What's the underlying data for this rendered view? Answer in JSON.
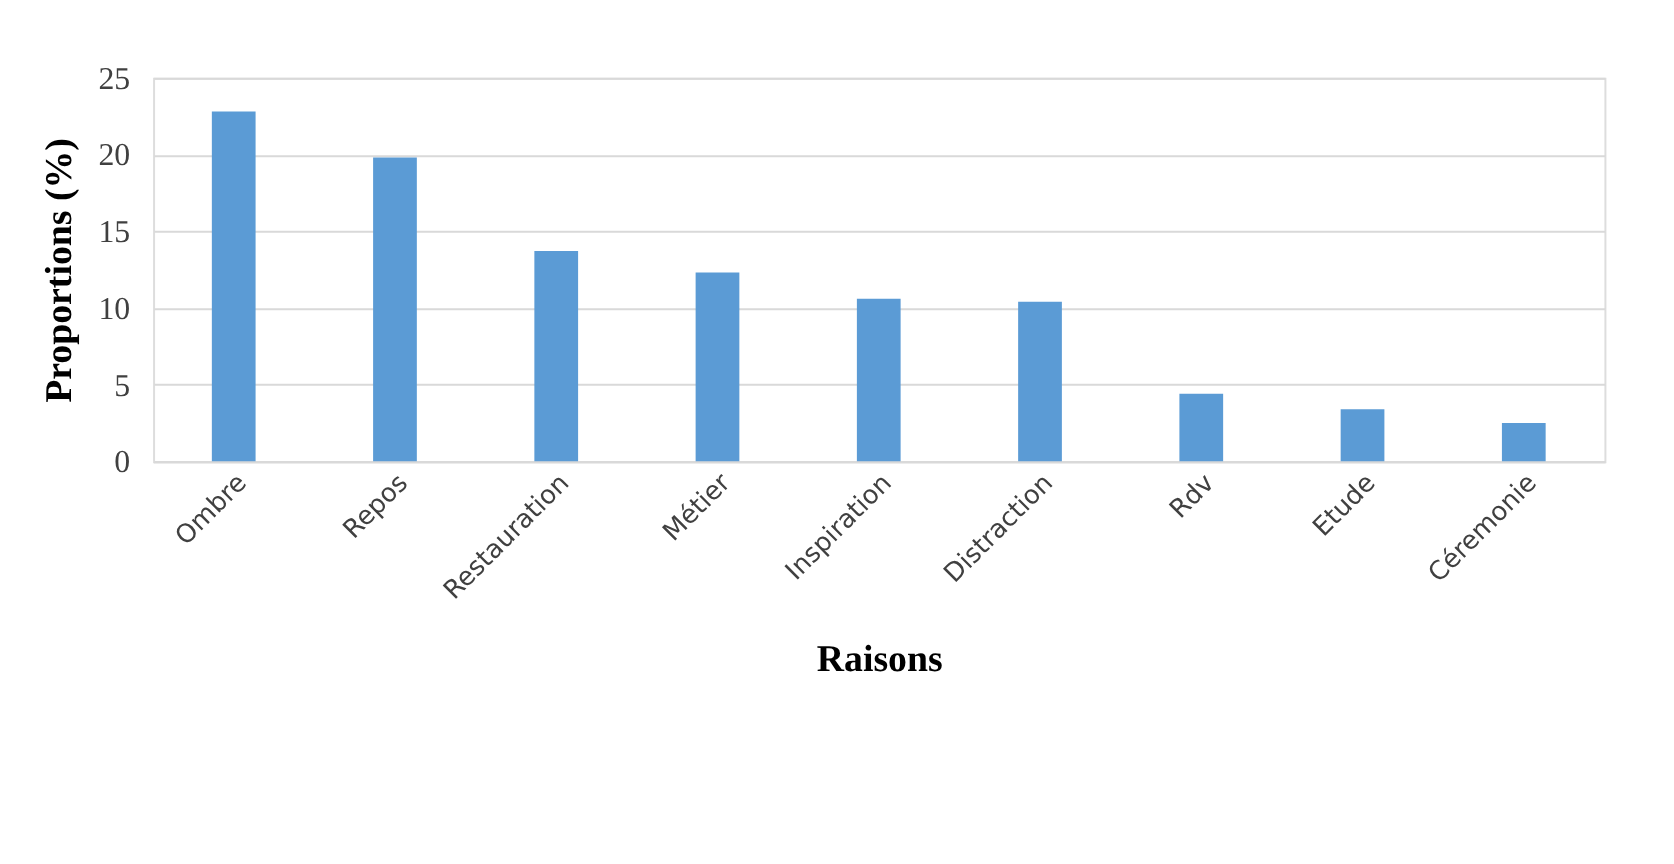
{
  "chart_data": {
    "type": "bar",
    "xlabel": "Raisons",
    "ylabel": "Proportions (%)",
    "categories": [
      "Ombre",
      "Repos",
      "Restauration",
      "Métier",
      "Inspiration",
      "Distraction",
      "Rdv",
      "Etude",
      "Céremonie"
    ],
    "values": [
      22.8,
      19.8,
      13.7,
      12.3,
      10.6,
      10.4,
      4.4,
      3.4,
      2.5
    ],
    "color": "#5b9bd5",
    "ylim": [
      0,
      25
    ],
    "yticks": [
      0,
      5,
      10,
      15,
      20,
      25
    ],
    "grid": "y"
  }
}
